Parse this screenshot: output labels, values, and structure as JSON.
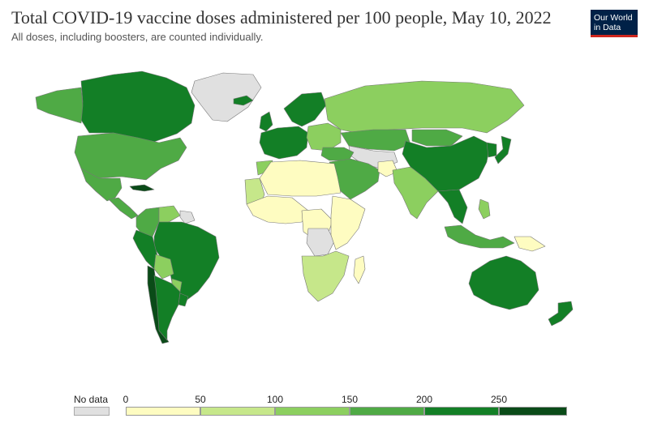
{
  "header": {
    "title": "Total COVID-19 vaccine doses administered per 100 people, May 10, 2022",
    "subtitle": "All doses, including boosters, are counted individually."
  },
  "logo": {
    "line1": "Our World",
    "line2": "in Data"
  },
  "legend": {
    "no_data_label": "No data",
    "no_data_color": "#e0e0e0",
    "ticks": [
      "0",
      "50",
      "100",
      "150",
      "200",
      "250"
    ],
    "bins": [
      {
        "from": 0,
        "to": 50,
        "color": "#fefcc1"
      },
      {
        "from": 50,
        "to": 100,
        "color": "#c6e78a"
      },
      {
        "from": 100,
        "to": 150,
        "color": "#8ccf5f"
      },
      {
        "from": 150,
        "to": 200,
        "color": "#4faa45"
      },
      {
        "from": 200,
        "to": 250,
        "color": "#137f26"
      },
      {
        "from": 250,
        "to": null,
        "color": "#0a4b18"
      }
    ]
  },
  "regions": [
    {
      "name": "canada",
      "bin": 4
    },
    {
      "name": "alaska",
      "bin": 3
    },
    {
      "name": "greenland",
      "bin": -1
    },
    {
      "name": "united-states",
      "bin": 3
    },
    {
      "name": "mexico",
      "bin": 3
    },
    {
      "name": "central-america",
      "bin": 3
    },
    {
      "name": "cuba",
      "bin": 5
    },
    {
      "name": "colombia",
      "bin": 3
    },
    {
      "name": "venezuela",
      "bin": 2
    },
    {
      "name": "guiana",
      "bin": -1
    },
    {
      "name": "brazil",
      "bin": 4
    },
    {
      "name": "peru",
      "bin": 4
    },
    {
      "name": "bolivia",
      "bin": 2
    },
    {
      "name": "chile",
      "bin": 5
    },
    {
      "name": "argentina",
      "bin": 4
    },
    {
      "name": "uruguay",
      "bin": 4
    },
    {
      "name": "paraguay",
      "bin": 2
    },
    {
      "name": "iceland",
      "bin": 4
    },
    {
      "name": "uk",
      "bin": 4
    },
    {
      "name": "scandinavia",
      "bin": 4
    },
    {
      "name": "western-europe",
      "bin": 4
    },
    {
      "name": "eastern-europe",
      "bin": 2
    },
    {
      "name": "russia",
      "bin": 2
    },
    {
      "name": "kazakhstan",
      "bin": 3
    },
    {
      "name": "central-asia",
      "bin": -1
    },
    {
      "name": "turkey",
      "bin": 3
    },
    {
      "name": "middle-east",
      "bin": 3
    },
    {
      "name": "north-africa",
      "bin": 0
    },
    {
      "name": "morocco",
      "bin": 2
    },
    {
      "name": "west-africa",
      "bin": 0
    },
    {
      "name": "mauritania",
      "bin": 1
    },
    {
      "name": "central-africa",
      "bin": 0
    },
    {
      "name": "congo-drc",
      "bin": -1
    },
    {
      "name": "east-africa",
      "bin": 0
    },
    {
      "name": "southern-africa",
      "bin": 1
    },
    {
      "name": "madagascar",
      "bin": 0
    },
    {
      "name": "india",
      "bin": 2
    },
    {
      "name": "afghanistan",
      "bin": 0
    },
    {
      "name": "china",
      "bin": 4
    },
    {
      "name": "mongolia",
      "bin": 3
    },
    {
      "name": "southeast-asia",
      "bin": 4
    },
    {
      "name": "indonesia",
      "bin": 3
    },
    {
      "name": "philippines",
      "bin": 2
    },
    {
      "name": "new-guinea",
      "bin": 0
    },
    {
      "name": "japan",
      "bin": 4
    },
    {
      "name": "korea",
      "bin": 4
    },
    {
      "name": "australia",
      "bin": 4
    },
    {
      "name": "new-zealand",
      "bin": 4
    }
  ]
}
